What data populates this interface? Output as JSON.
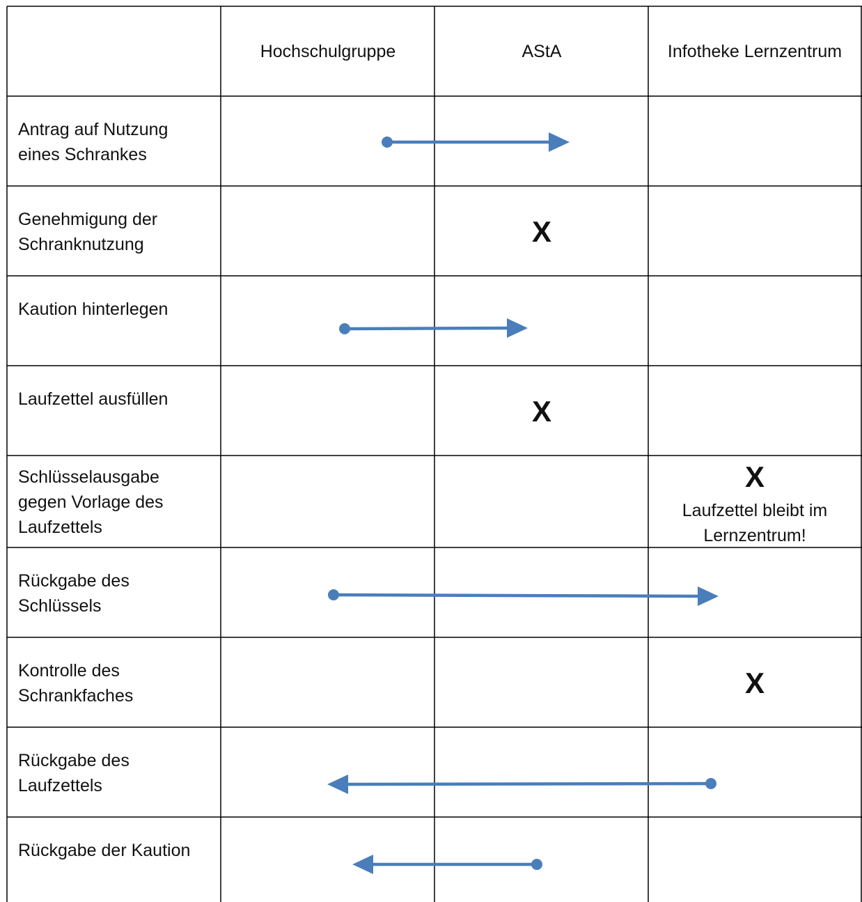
{
  "columns": [
    "",
    "Hochschulgruppe",
    "AStA",
    "Infotheke Lernzentrum"
  ],
  "rows": [
    {
      "label": "Antrag auf Nutzung\neines Schrankes",
      "marker": "",
      "note": ""
    },
    {
      "label": "Genehmigung der\nSchranknutzung",
      "marker": "X",
      "note": ""
    },
    {
      "label": "Kaution hinterlegen",
      "marker": "",
      "note": ""
    },
    {
      "label": "Laufzettel ausfüllen",
      "marker": "X",
      "note": ""
    },
    {
      "label": "Schlüsselausgabe\ngegen Vorlage des\nLaufzettels",
      "marker": "X",
      "note": "Laufzettel bleibt im\nLernzentrum!"
    },
    {
      "label": "Rückgabe des\nSchlüssels",
      "marker": "",
      "note": ""
    },
    {
      "label": "Kontrolle des\nSchrankfaches",
      "marker": "X",
      "note": ""
    },
    {
      "label": "Rückgabe des\nLaufzettels",
      "marker": "",
      "note": ""
    },
    {
      "label": "Rückgabe der Kaution",
      "marker": "",
      "note": ""
    }
  ],
  "flows": [
    {
      "row": 0,
      "from": "Hochschulgruppe",
      "to": "AStA"
    },
    {
      "row": 2,
      "from": "Hochschulgruppe",
      "to": "AStA"
    },
    {
      "row": 5,
      "from": "Hochschulgruppe",
      "to": "Infotheke Lernzentrum"
    },
    {
      "row": 7,
      "from": "Infotheke Lernzentrum",
      "to": "Hochschulgruppe"
    },
    {
      "row": 8,
      "from": "AStA",
      "to": "Hochschulgruppe"
    }
  ],
  "marker_columns": {
    "1": "AStA",
    "3": "AStA",
    "4": "Infotheke Lernzentrum",
    "6": "Infotheke Lernzentrum"
  },
  "colors": {
    "arrow": "#4a7ebb",
    "grid": "#000000"
  }
}
